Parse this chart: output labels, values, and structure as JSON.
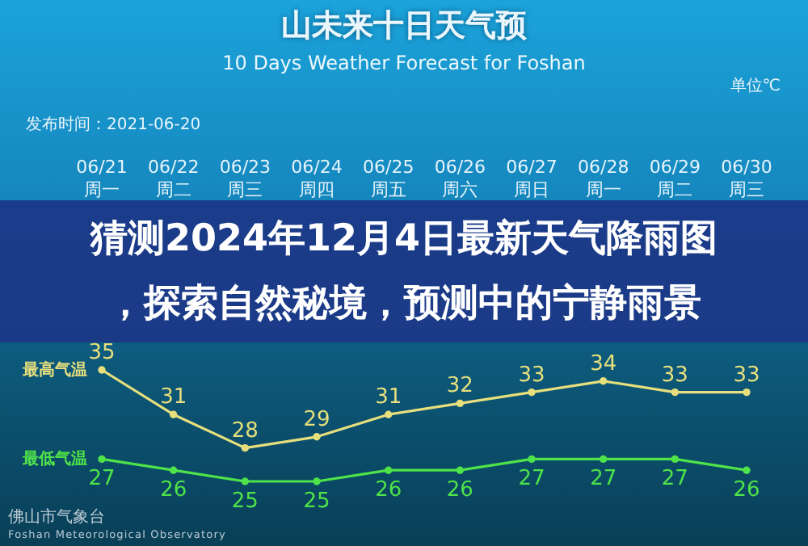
{
  "chart_data": {
    "type": "line",
    "title": "山未来十日天气预",
    "subtitle": "10 Days Weather Forecast for Foshan",
    "annotations": [
      "单位℃",
      "发布时间：2021-06-20",
      "猜测2024年12月4日最新天气降雨图，探索自然秘境，预测中的宁静雨景",
      "佛山市气象台",
      "Foshan Meteorological Observatory"
    ],
    "categories": [
      "06/21\n周一",
      "06/22\n周二",
      "06/23\n周三",
      "06/24\n周四",
      "06/25\n周五",
      "06/26\n周六",
      "06/27\n周日",
      "06/28\n周一",
      "06/29\n周二",
      "06/30\n周三"
    ],
    "series": [
      {
        "name": "最高气温",
        "color": "#e6df7c",
        "values": [
          35,
          31,
          28,
          29,
          31,
          32,
          33,
          34,
          33,
          33
        ]
      },
      {
        "name": "最低气温",
        "color": "#4fe34a",
        "values": [
          27,
          26,
          25,
          25,
          26,
          26,
          27,
          27,
          27,
          26
        ]
      }
    ],
    "data_labels": true,
    "marker": "circle",
    "line_style": "solid"
  }
}
